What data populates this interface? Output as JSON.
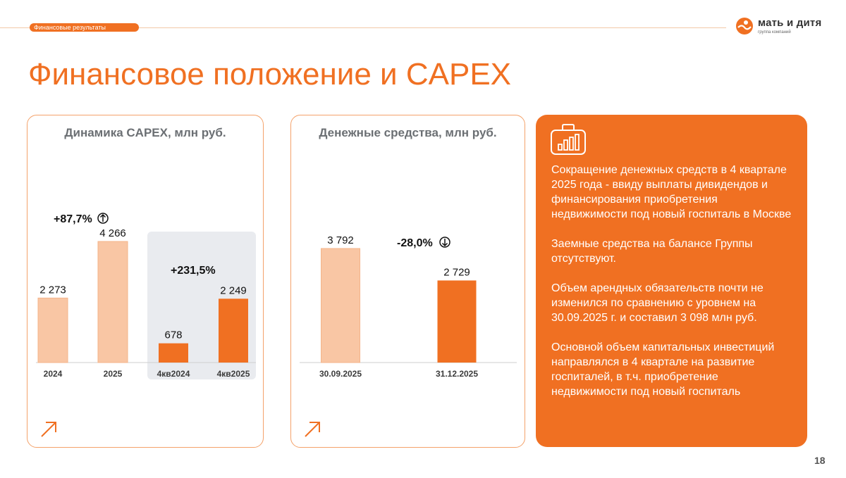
{
  "header": {
    "section_label": "Финансовые результаты",
    "logo_name": "мать и дитя",
    "logo_sub": "группа компаний"
  },
  "title": "Финансовое положение и CAPEX",
  "page_number": "18",
  "capex_card": {
    "title": "Динамика CAPEX, млн руб."
  },
  "cash_card": {
    "title": "Денежные средства, млн руб."
  },
  "info": {
    "paragraphs": [
      "Сокращение денежных средств в 4 квартале 2025 года - ввиду выплаты дивидендов и финансирования приобретения недвижимости под новый госпиталь в Москве",
      "Заемные средства на балансе Группы отсутствуют.",
      "Объем арендных обязательств почти не изменился по сравнению с уровнем на 30.09.2025 г. и составил 3 098 млн руб.",
      "Основной объем капитальных инвестиций направлялся в 4 квартале на развитие госпиталей, в т.ч. приобретение недвижимости под новый госпиталь"
    ]
  },
  "colors": {
    "accent": "#f07022",
    "light_bar": "#f9c6a4",
    "highlight_bg": "#e9ebef"
  },
  "chart_data": [
    {
      "type": "bar",
      "title": "Динамика CAPEX, млн руб.",
      "categories": [
        "2024",
        "2025",
        "4кв2024",
        "4кв2025"
      ],
      "values": [
        2273,
        4266,
        678,
        2249
      ],
      "value_labels": [
        "2 273",
        "4 266",
        "678",
        "2 249"
      ],
      "annotations": [
        "+87,7%",
        "+231,5%"
      ],
      "ylim": [
        0,
        4266
      ]
    },
    {
      "type": "bar",
      "title": "Денежные средства, млн руб.",
      "categories": [
        "30.09.2025",
        "31.12.2025"
      ],
      "values": [
        3792,
        2729
      ],
      "value_labels": [
        "3 792",
        "2 729"
      ],
      "annotations": [
        "-28,0%"
      ],
      "ylim": [
        0,
        3792
      ]
    }
  ]
}
